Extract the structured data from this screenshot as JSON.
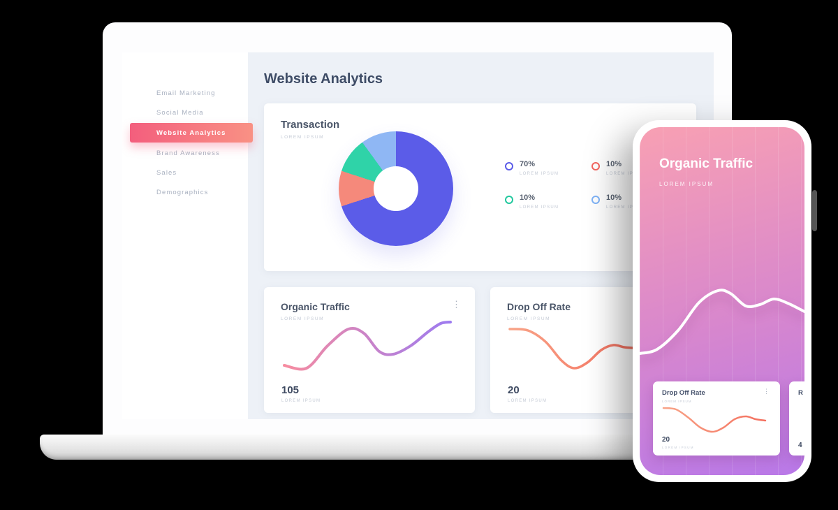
{
  "sidebar": {
    "items": [
      {
        "label": "Email Marketing",
        "active": false
      },
      {
        "label": "Social Media",
        "active": false
      },
      {
        "label": "Website Analytics",
        "active": true
      },
      {
        "label": "Brand Awareness",
        "active": false
      },
      {
        "label": "Sales",
        "active": false
      },
      {
        "label": "Demographics",
        "active": false
      }
    ],
    "active_gradient": [
      "#f35e7d",
      "#f99184"
    ]
  },
  "main": {
    "title": "Website Analytics"
  },
  "transaction": {
    "title": "Transaction",
    "subtitle": "LOREM IPSUM",
    "legend": [
      {
        "value": "70%",
        "label": "LOREM IPSUM",
        "color": "#5b5ce8"
      },
      {
        "value": "10%",
        "label": "LOREM IPSUM",
        "color": "#f4655f"
      },
      {
        "value": "10%",
        "label": "LOREM IPSUM",
        "color": "#22c89e"
      },
      {
        "value": "10%",
        "label": "LOREM IPSUM",
        "color": "#7fb3f7"
      }
    ]
  },
  "organic": {
    "title": "Organic Traffic",
    "subtitle": "LOREM IPSUM",
    "value": "105",
    "value_label": "LOREM IPSUM",
    "menu_icon": "⋮"
  },
  "dropoff": {
    "title": "Drop Off Rate",
    "subtitle": "LOREM IPSUM",
    "value": "20",
    "value_label": "LOREM IPSUM"
  },
  "phone": {
    "title": "Organic Traffic",
    "subtitle": "LOREM IPSUM",
    "gradient": [
      "#f8a0b3",
      "#d887cd",
      "#b878e8"
    ],
    "cards": [
      {
        "title": "Drop Off Rate",
        "subtitle": "LOREM IPSUM",
        "value": "20",
        "value_label": "LOREM IPSUM",
        "menu_icon": "⋮"
      },
      {
        "title": "R",
        "value": "4"
      }
    ]
  },
  "chart_data": [
    {
      "type": "pie",
      "title": "Transaction",
      "labels": [
        "LOREM IPSUM",
        "LOREM IPSUM",
        "LOREM IPSUM",
        "LOREM IPSUM"
      ],
      "values": [
        70,
        10,
        10,
        10
      ],
      "unit": "%",
      "colors": [
        "#5b5ce8",
        "#f5897b",
        "#2fd3a8",
        "#8fb7f4"
      ],
      "donut": true,
      "legend_position": "right"
    },
    {
      "type": "line",
      "title": "Organic Traffic",
      "current_value": 105,
      "stroke": [
        "#f78ca0",
        "#9d7bf0"
      ],
      "points": [
        [
          4,
          68
        ],
        [
          36,
          72
        ],
        [
          66,
          40
        ],
        [
          96,
          16
        ],
        [
          118,
          22
        ],
        [
          140,
          48
        ],
        [
          160,
          52
        ],
        [
          185,
          40
        ],
        [
          210,
          20
        ],
        [
          228,
          8
        ],
        [
          242,
          6
        ]
      ]
    },
    {
      "type": "line",
      "title": "Drop Off Rate",
      "current_value": 20,
      "stroke": [
        "#f8a488",
        "#f4705f"
      ],
      "points": [
        [
          4,
          10
        ],
        [
          30,
          12
        ],
        [
          55,
          28
        ],
        [
          78,
          55
        ],
        [
          96,
          66
        ],
        [
          115,
          58
        ],
        [
          135,
          40
        ],
        [
          152,
          33
        ],
        [
          168,
          36
        ],
        [
          180,
          37
        ]
      ]
    },
    {
      "type": "line",
      "title": "Organic Traffic (phone)",
      "stroke": [
        "#ffffff",
        "#ffffff"
      ],
      "points": [
        [
          0,
          118
        ],
        [
          25,
          112
        ],
        [
          55,
          85
        ],
        [
          85,
          45
        ],
        [
          112,
          28
        ],
        [
          130,
          32
        ],
        [
          152,
          50
        ],
        [
          172,
          48
        ],
        [
          192,
          40
        ],
        [
          212,
          46
        ],
        [
          236,
          58
        ]
      ]
    },
    {
      "type": "line",
      "title": "Drop Off Rate (phone)",
      "current_value": 20,
      "stroke": [
        "#f8a488",
        "#f4705f"
      ],
      "points": [
        [
          2,
          6
        ],
        [
          20,
          8
        ],
        [
          38,
          20
        ],
        [
          55,
          34
        ],
        [
          72,
          40
        ],
        [
          88,
          34
        ],
        [
          104,
          22
        ],
        [
          120,
          18
        ],
        [
          134,
          22
        ],
        [
          148,
          24
        ]
      ]
    }
  ]
}
